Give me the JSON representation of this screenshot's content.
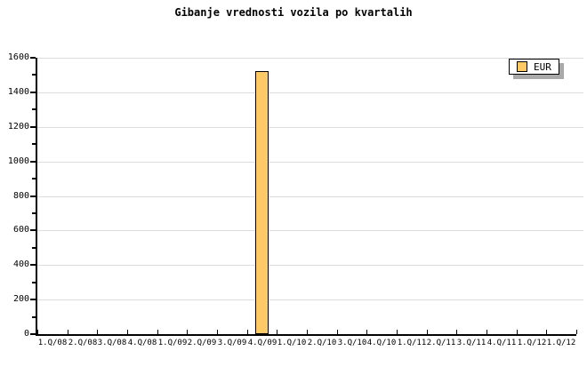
{
  "chart_data": {
    "type": "bar",
    "title": "Gibanje vrednosti vozila po kvartalih",
    "categories": [
      "1.Q/08",
      "2.Q/08",
      "3.Q/08",
      "4.Q/08",
      "1.Q/09",
      "2.Q/09",
      "3.Q/09",
      "4.Q/09",
      "1.Q/10",
      "2.Q/10",
      "3.Q/10",
      "4.Q/10",
      "1.Q/11",
      "2.Q/11",
      "3.Q/11",
      "4.Q/11",
      "1.Q/12",
      "1.Q/12"
    ],
    "series": [
      {
        "name": "EUR",
        "values": [
          0,
          0,
          0,
          0,
          0,
          0,
          0,
          1525,
          0,
          0,
          0,
          0,
          0,
          0,
          0,
          0,
          0,
          0
        ]
      }
    ],
    "xlabel": "",
    "ylabel": "",
    "ylim": [
      0,
      1600
    ],
    "ytick_step": 200,
    "yminor_tick_step": 100,
    "ytick_labels": [
      "0",
      "200",
      "400",
      "600",
      "800",
      "1000",
      "1200",
      "1400",
      "1600"
    ],
    "grid": "horizontal-major-only",
    "legend_position": "top-right"
  },
  "legend": {
    "label": "EUR",
    "swatch_color": "#FFC966"
  },
  "colors": {
    "background": "#FFFFFF",
    "bar_fill": "#FFC966",
    "bar_border": "#000000",
    "grid_line": "#DCDCDC",
    "axis": "#000000",
    "text": "#000000",
    "legend_bg": "#FFFFFF",
    "legend_border": "#000000",
    "legend_shadow": "#A9A9A9"
  }
}
